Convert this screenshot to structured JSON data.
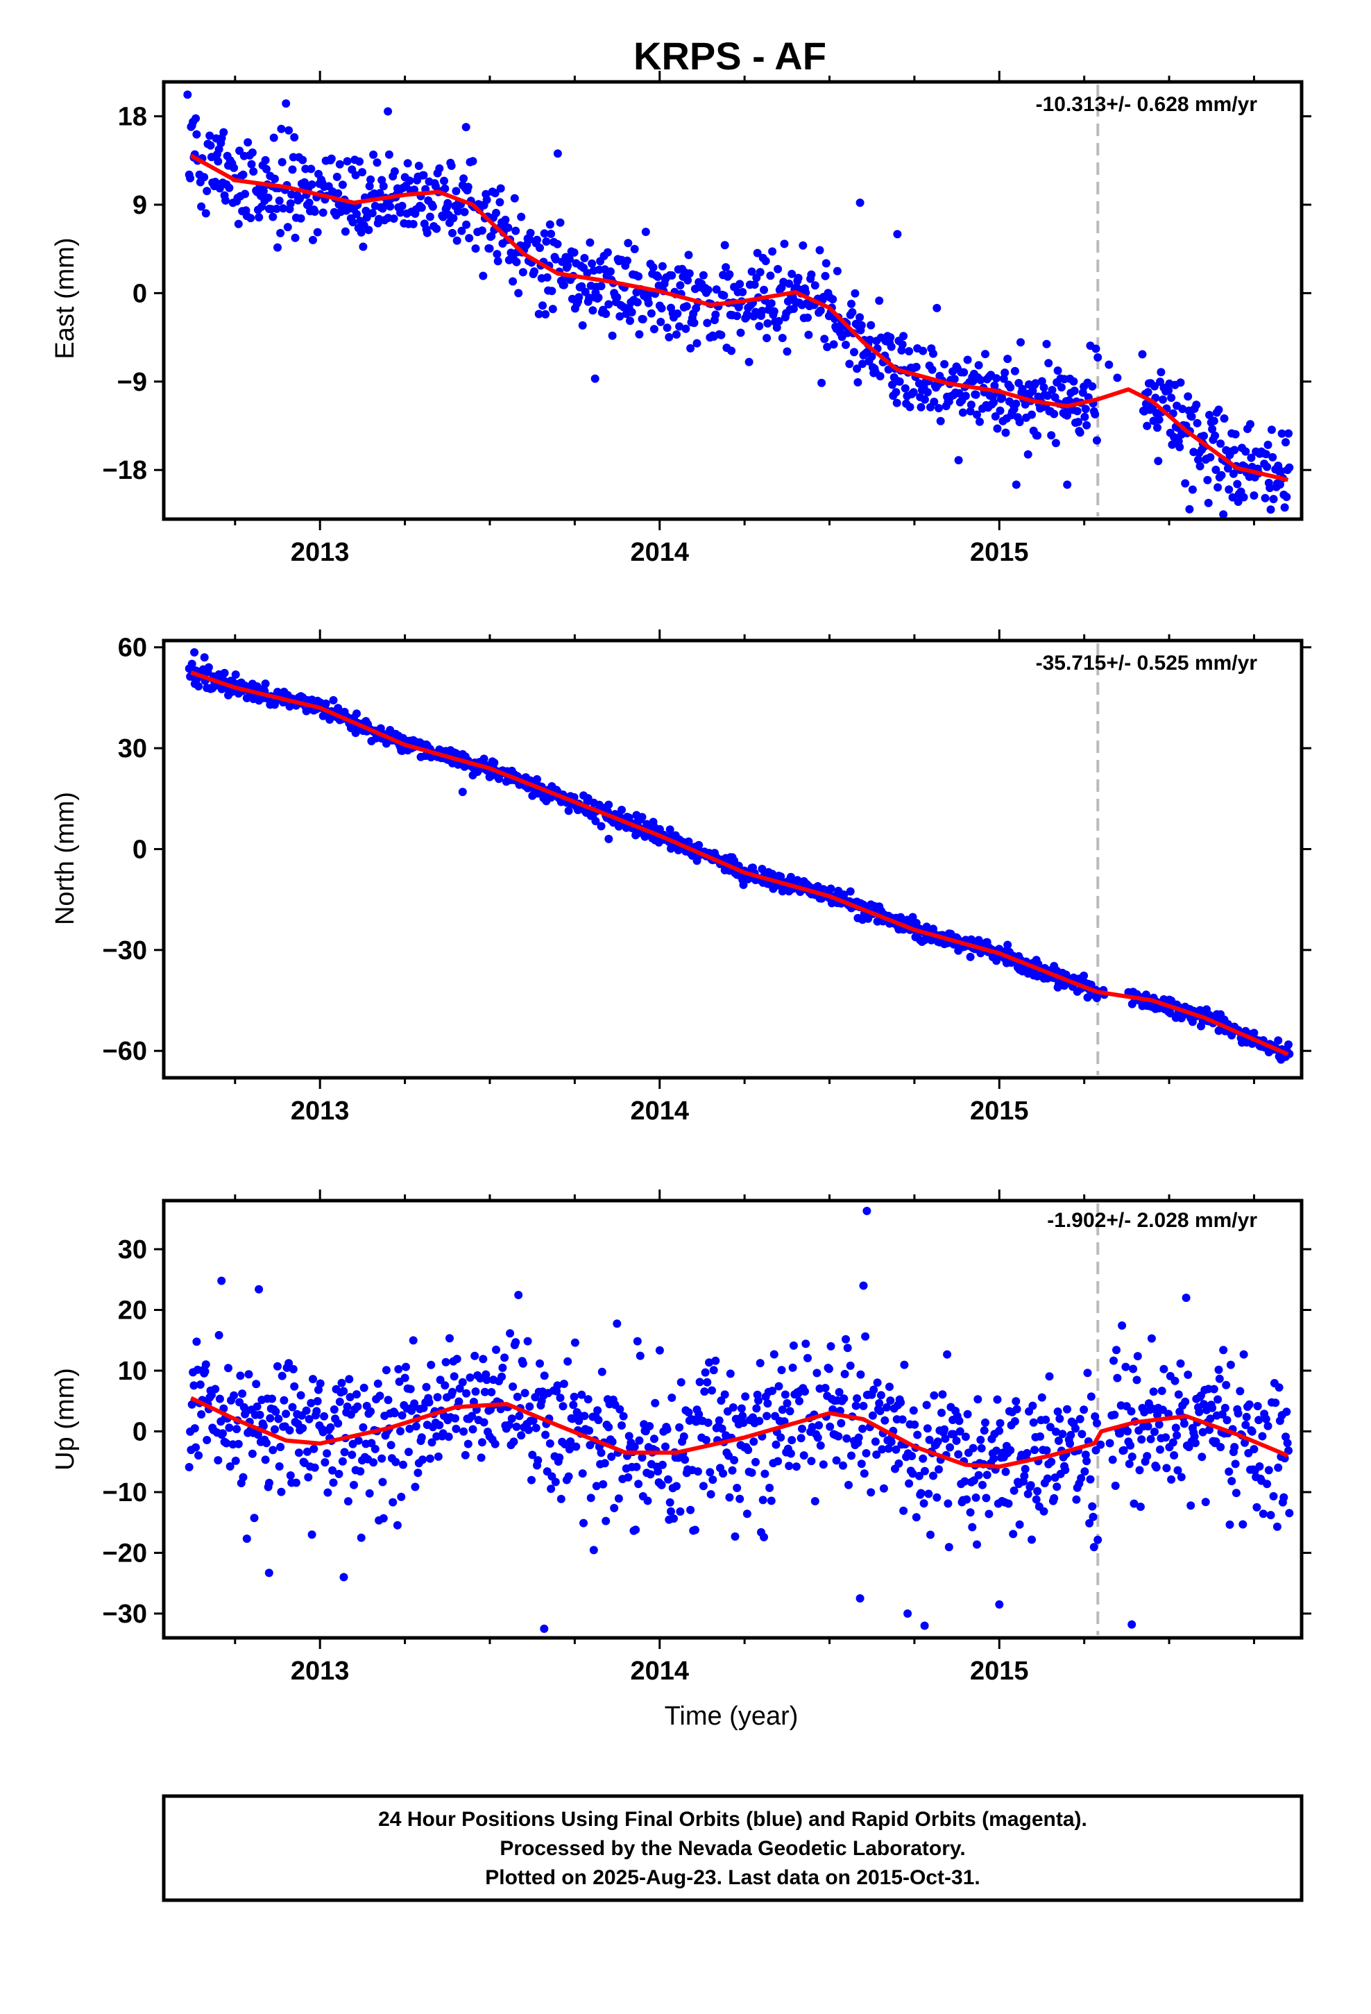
{
  "title": "KRPS - AF",
  "xlabel": "Time (year)",
  "year_ticks": [
    "2013",
    "2014",
    "2015"
  ],
  "caption": [
    "24 Hour Positions Using Final Orbits (blue) and Rapid Orbits (magenta).",
    "Processed by the Nevada Geodetic Laboratory.",
    "Plotted on 2025-Aug-23. Last data on 2015-Oct-31."
  ],
  "colors": {
    "points": "#0000ff",
    "model": "#ff0000",
    "equipment_change": "#bbbbbb",
    "frame": "#000000"
  },
  "equipment_change_year": 2015.29,
  "chart_data": [
    {
      "type": "scatter",
      "component": "east",
      "ylabel": "East (mm)",
      "rate_label": "-10.313+/- 0.628 mm/yr",
      "xlim": [
        2012.54,
        2015.89
      ],
      "ylim": [
        -23,
        21.5
      ],
      "yticks": [
        18,
        9,
        0,
        -9,
        -18
      ],
      "ytick_labels": [
        "18",
        "9",
        "0",
        "−9",
        "−18"
      ],
      "model": [
        [
          2012.62,
          14
        ],
        [
          2012.75,
          11.5
        ],
        [
          2012.9,
          10.8
        ],
        [
          2013.1,
          9.2
        ],
        [
          2013.25,
          10
        ],
        [
          2013.35,
          10.3
        ],
        [
          2013.45,
          9
        ],
        [
          2013.6,
          4
        ],
        [
          2013.7,
          2
        ],
        [
          2013.85,
          1.2
        ],
        [
          2014.0,
          0.2
        ],
        [
          2014.15,
          -1.2
        ],
        [
          2014.25,
          -0.8
        ],
        [
          2014.4,
          0.1
        ],
        [
          2014.5,
          -1.5
        ],
        [
          2014.6,
          -5
        ],
        [
          2014.7,
          -7.8
        ],
        [
          2014.85,
          -9.2
        ],
        [
          2015.0,
          -10
        ],
        [
          2015.1,
          -11
        ],
        [
          2015.2,
          -11.5
        ],
        [
          2015.29,
          -10.8
        ],
        [
          2015.38,
          -9.8
        ],
        [
          2015.45,
          -11
        ],
        [
          2015.55,
          -14
        ],
        [
          2015.7,
          -17.8
        ],
        [
          2015.85,
          -19
        ]
      ],
      "noise_sd": 2.3,
      "gap": [
        2015.29,
        2015.42
      ],
      "outliers": [
        [
          2012.61,
          20.2
        ],
        [
          2012.9,
          19.3
        ],
        [
          2013.2,
          18.5
        ],
        [
          2013.43,
          16.9
        ],
        [
          2013.7,
          14.2
        ],
        [
          2014.59,
          9.2
        ],
        [
          2014.7,
          6
        ],
        [
          2014.88,
          -17
        ],
        [
          2015.05,
          -19.5
        ],
        [
          2015.2,
          -19.5
        ],
        [
          2013.81,
          -8.7
        ],
        [
          2015.56,
          -22
        ]
      ]
    },
    {
      "type": "scatter",
      "component": "north",
      "ylabel": "North (mm)",
      "rate_label": "-35.715+/- 0.525 mm/yr",
      "xlim": [
        2012.54,
        2015.89
      ],
      "ylim": [
        -68,
        62
      ],
      "yticks": [
        60,
        30,
        0,
        -30,
        -60
      ],
      "ytick_labels": [
        "60",
        "30",
        "0",
        "−30",
        "−60"
      ],
      "model": [
        [
          2012.62,
          52.5
        ],
        [
          2012.75,
          48
        ],
        [
          2013.0,
          42
        ],
        [
          2013.25,
          31
        ],
        [
          2013.5,
          24
        ],
        [
          2013.75,
          14
        ],
        [
          2014.0,
          4
        ],
        [
          2014.25,
          -7
        ],
        [
          2014.5,
          -14
        ],
        [
          2014.75,
          -24
        ],
        [
          2015.0,
          -31
        ],
        [
          2015.25,
          -41
        ],
        [
          2015.29,
          -42.5
        ],
        [
          2015.45,
          -45
        ],
        [
          2015.6,
          -50
        ],
        [
          2015.85,
          -61
        ]
      ],
      "noise_sd": 1.3,
      "gap": [
        2015.29,
        2015.38
      ],
      "outliers": [
        [
          2012.63,
          58.5
        ],
        [
          2012.66,
          57
        ],
        [
          2013.85,
          3
        ],
        [
          2013.42,
          17
        ]
      ]
    },
    {
      "type": "scatter",
      "component": "up",
      "ylabel": "Up (mm)",
      "rate_label": "-1.902+/- 2.028 mm/yr",
      "xlim": [
        2012.54,
        2015.89
      ],
      "ylim": [
        -34,
        38
      ],
      "yticks": [
        30,
        20,
        10,
        0,
        -10,
        -20,
        -30
      ],
      "ytick_labels": [
        "30",
        "20",
        "10",
        "0",
        "−10",
        "−20",
        "−30"
      ],
      "model": [
        [
          2012.62,
          5.5
        ],
        [
          2012.75,
          2
        ],
        [
          2012.9,
          -1.5
        ],
        [
          2013.0,
          -2
        ],
        [
          2013.2,
          0.5
        ],
        [
          2013.4,
          4
        ],
        [
          2013.55,
          4.5
        ],
        [
          2013.7,
          1
        ],
        [
          2013.9,
          -3.5
        ],
        [
          2014.05,
          -3.5
        ],
        [
          2014.25,
          -1
        ],
        [
          2014.5,
          3
        ],
        [
          2014.6,
          2
        ],
        [
          2014.75,
          -2.5
        ],
        [
          2014.9,
          -5.5
        ],
        [
          2015.0,
          -5.8
        ],
        [
          2015.15,
          -4
        ],
        [
          2015.28,
          -2
        ],
        [
          2015.3,
          0
        ],
        [
          2015.4,
          1.5
        ],
        [
          2015.55,
          2.5
        ],
        [
          2015.7,
          -0.5
        ],
        [
          2015.85,
          -4
        ]
      ],
      "noise_sd": 6,
      "gap": [
        2015.29,
        2015.33
      ],
      "outliers": [
        [
          2014.61,
          36.3
        ],
        [
          2012.71,
          24.8
        ],
        [
          2012.82,
          23.4
        ],
        [
          2012.85,
          -23.3
        ],
        [
          2013.07,
          -24
        ],
        [
          2013.66,
          -32.5
        ],
        [
          2014.78,
          -32
        ],
        [
          2015.39,
          -31.8
        ],
        [
          2014.59,
          -27.5
        ],
        [
          2014.73,
          -30
        ],
        [
          2015.0,
          -28.5
        ],
        [
          2015.55,
          22
        ],
        [
          2014.6,
          24
        ]
      ]
    }
  ]
}
